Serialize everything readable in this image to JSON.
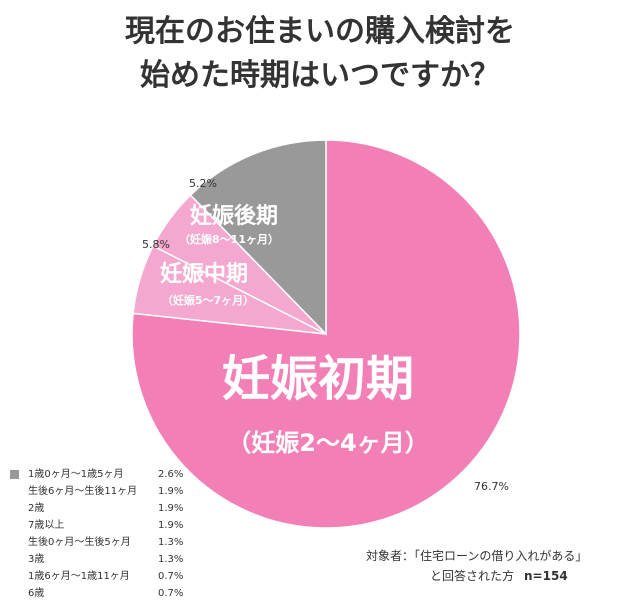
{
  "title": {
    "line1": "現在のお住まいの購入検討を",
    "line2": "始めた時期はいつですか？"
  },
  "chart_data": {
    "type": "pie",
    "slices": [
      {
        "label": "妊娠初期",
        "sublabel": "（妊娠2〜4ヶ月）",
        "value": 76.7,
        "value_label": "76.7%",
        "color": "#f27fb6"
      },
      {
        "label": "妊娠中期",
        "sublabel": "（妊娠5〜7ヶ月）",
        "value": 5.8,
        "value_label": "5.8%",
        "color": "#f5a8cf"
      },
      {
        "label": "妊娠後期",
        "sublabel": "（妊娠8〜11ヶ月）",
        "value": 5.2,
        "value_label": "5.2%",
        "color": "#f5a8cf"
      },
      {
        "label": "",
        "sublabel": "",
        "value": 12.3,
        "value_label": "",
        "color": "#999999"
      }
    ],
    "legend": [
      {
        "label": "1歳0ヶ月〜1歳5ヶ月",
        "value": "2.6%",
        "color": "#999999"
      },
      {
        "label": "生後6ヶ月〜生後11ヶ月",
        "value": "1.9%",
        "color": ""
      },
      {
        "label": "2歳",
        "value": "1.9%",
        "color": ""
      },
      {
        "label": "7歳以上",
        "value": "1.9%",
        "color": ""
      },
      {
        "label": "生後0ヶ月〜生後5ヶ月",
        "value": "1.3%",
        "color": ""
      },
      {
        "label": "3歳",
        "value": "1.3%",
        "color": ""
      },
      {
        "label": "1歳6ヶ月〜1歳11ヶ月",
        "value": "0.7%",
        "color": ""
      },
      {
        "label": "6歳",
        "value": "0.7%",
        "color": ""
      }
    ]
  },
  "note": {
    "line1": "対象者：「住宅ローンの借り入れがある」",
    "line2": "と回答された方",
    "n": "n=154"
  }
}
